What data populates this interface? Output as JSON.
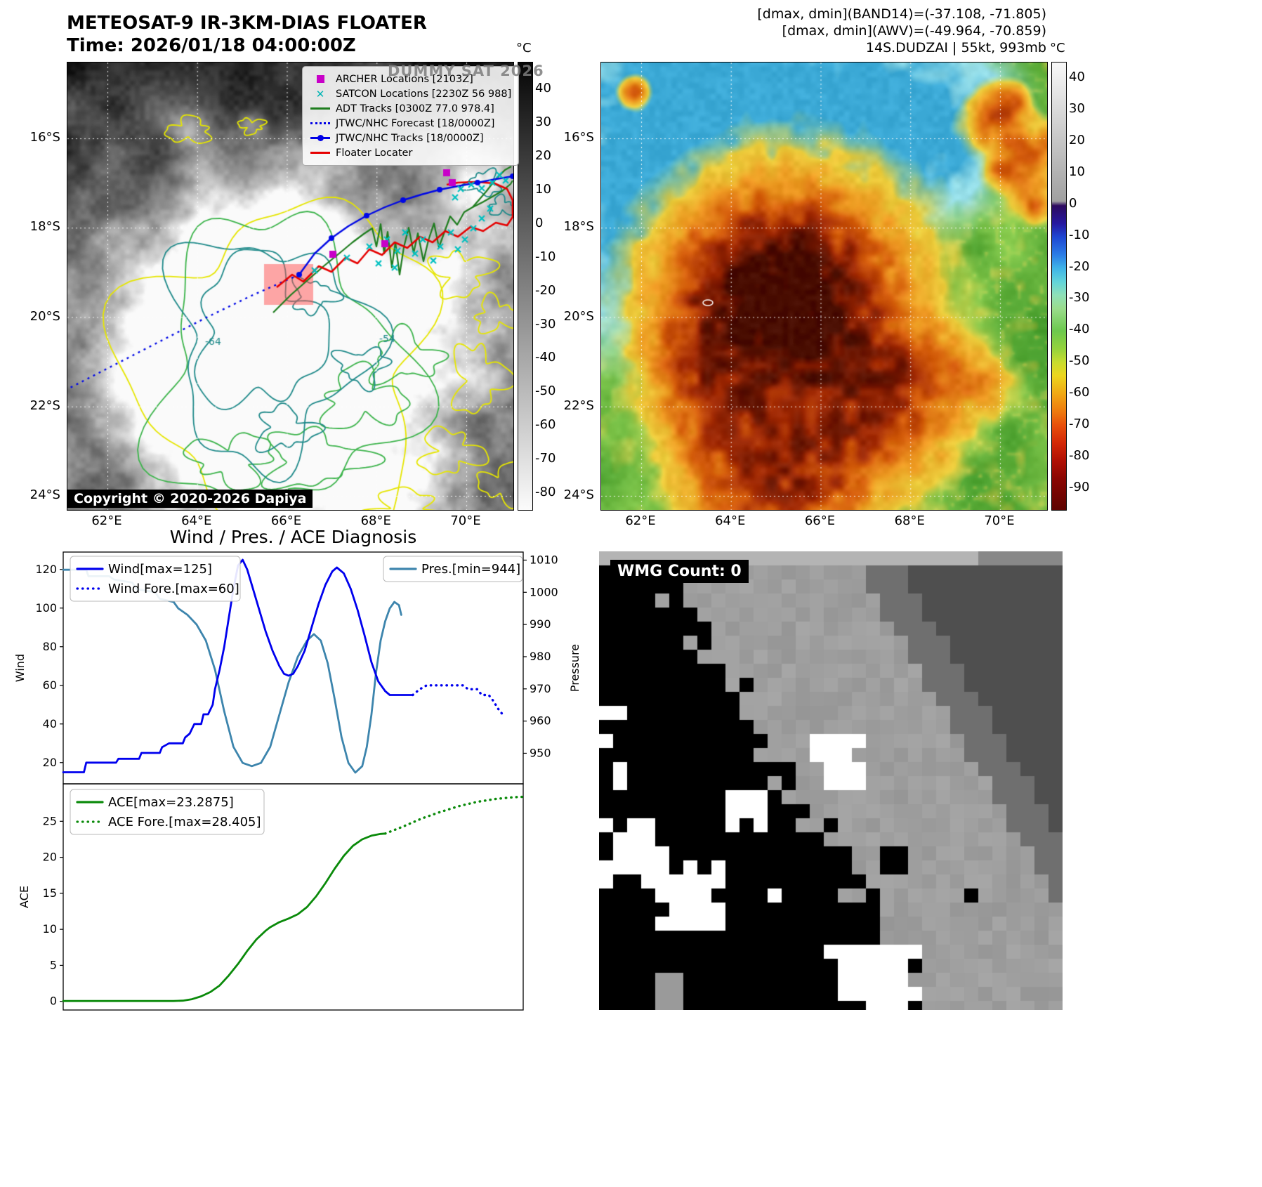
{
  "ir_floater": {
    "title": "METEOSAT-9 IR-3KM-DIAS FLOATER",
    "time_label": "Time: 2026/01/18 04:00:00Z",
    "watermark": "DUMMY SAT 2026",
    "copyright": "Copyright © 2020-2026 Dapiya",
    "colorbar_unit": "°C",
    "colorbar_ticks": [
      40,
      30,
      20,
      10,
      0,
      -10,
      -20,
      -30,
      -40,
      -50,
      -60,
      -70,
      -80
    ],
    "lat_ticks": [
      "16°S",
      "18°S",
      "20°S",
      "22°S",
      "24°S"
    ],
    "lon_ticks": [
      "62°E",
      "64°E",
      "66°E",
      "68°E",
      "70°E"
    ],
    "contour_labels": [
      "-64",
      "-54"
    ],
    "legend": [
      {
        "label": "ARCHER Locations [2103Z]",
        "marker": "square",
        "color": "#c800c8"
      },
      {
        "label": "SATCON Locations [2230Z 56 988]",
        "marker": "x",
        "color": "#00b4b4"
      },
      {
        "label": "ADT Tracks [0300Z 77.0 978.4]",
        "marker": "line",
        "color": "#1e7d1e"
      },
      {
        "label": "JTWC/NHC Forecast [18/0000Z]",
        "marker": "dotted",
        "color": "#0000e6"
      },
      {
        "label": "JTWC/NHC Tracks [18/0000Z]",
        "marker": "line-dot",
        "color": "#0000e6"
      },
      {
        "label": "Floater Locater",
        "marker": "line",
        "color": "#e60000"
      }
    ],
    "tracks": {
      "forecast": [
        [
          330,
          302
        ],
        [
          262,
          332
        ],
        [
          196,
          364
        ],
        [
          130,
          398
        ],
        [
          64,
          432
        ],
        [
          0,
          465
        ]
      ],
      "jtwc": [
        [
          330,
          302
        ],
        [
          352,
          272
        ],
        [
          376,
          250
        ],
        [
          400,
          233
        ],
        [
          426,
          218
        ],
        [
          452,
          206
        ],
        [
          478,
          196
        ],
        [
          504,
          188
        ],
        [
          530,
          181
        ],
        [
          556,
          176
        ],
        [
          584,
          171
        ],
        [
          610,
          166
        ],
        [
          634,
          162
        ]
      ],
      "adt": [
        [
          293,
          356
        ],
        [
          318,
          331
        ],
        [
          343,
          309
        ],
        [
          366,
          289
        ],
        [
          388,
          271
        ],
        [
          406,
          256
        ],
        [
          422,
          244
        ],
        [
          434,
          236
        ],
        [
          440,
          262
        ],
        [
          446,
          230
        ],
        [
          451,
          272
        ],
        [
          456,
          241
        ],
        [
          462,
          292
        ],
        [
          467,
          256
        ],
        [
          473,
          302
        ],
        [
          479,
          263
        ],
        [
          486,
          235
        ],
        [
          493,
          271
        ],
        [
          499,
          243
        ],
        [
          507,
          283
        ],
        [
          514,
          253
        ],
        [
          522,
          229
        ],
        [
          529,
          263
        ],
        [
          537,
          241
        ],
        [
          545,
          219
        ],
        [
          555,
          231
        ],
        [
          565,
          213
        ],
        [
          577,
          206
        ],
        [
          591,
          199
        ],
        [
          605,
          191
        ],
        [
          619,
          183
        ],
        [
          631,
          173
        ],
        [
          634,
          168
        ]
      ],
      "adt_branch": [
        [
          577,
          206
        ],
        [
          596,
          184
        ],
        [
          610,
          166
        ],
        [
          623,
          153
        ],
        [
          632,
          148
        ]
      ],
      "floater": [
        [
          298,
          320
        ],
        [
          320,
          302
        ],
        [
          336,
          312
        ],
        [
          358,
          290
        ],
        [
          376,
          298
        ],
        [
          396,
          278
        ],
        [
          413,
          286
        ],
        [
          430,
          266
        ],
        [
          448,
          274
        ],
        [
          466,
          256
        ],
        [
          484,
          264
        ],
        [
          502,
          248
        ],
        [
          520,
          256
        ],
        [
          538,
          240
        ],
        [
          556,
          248
        ],
        [
          574,
          234
        ],
        [
          592,
          240
        ],
        [
          610,
          228
        ],
        [
          626,
          232
        ],
        [
          634,
          220
        ],
        [
          634,
          196
        ],
        [
          626,
          180
        ],
        [
          608,
          172
        ],
        [
          580,
          170
        ],
        [
          556,
          171
        ],
        [
          540,
          174
        ]
      ],
      "satcon_points": [
        [
          352,
          296
        ],
        [
          398,
          278
        ],
        [
          430,
          262
        ],
        [
          443,
          286
        ],
        [
          455,
          252
        ],
        [
          466,
          292
        ],
        [
          470,
          268
        ],
        [
          481,
          242
        ],
        [
          495,
          272
        ],
        [
          506,
          252
        ],
        [
          521,
          282
        ],
        [
          531,
          262
        ],
        [
          546,
          242
        ],
        [
          556,
          266
        ],
        [
          566,
          252
        ],
        [
          578,
          236
        ],
        [
          590,
          222
        ],
        [
          602,
          208
        ],
        [
          560,
          180
        ],
        [
          575,
          174
        ],
        [
          590,
          179
        ],
        [
          605,
          171
        ],
        [
          552,
          192
        ],
        [
          615,
          160
        ],
        [
          624,
          168
        ]
      ],
      "archer_points": [
        [
          540,
          157
        ],
        [
          548,
          171
        ],
        [
          452,
          258
        ],
        [
          378,
          273
        ]
      ],
      "floater_box": [
        280,
        287,
        70,
        58
      ]
    }
  },
  "ir_awv": {
    "info_lines": [
      "[dmax, dmin](BAND14)=(-37.108, -71.805)",
      "[dmax, dmin](AWV)=(-49.964, -70.859)",
      "14S.DUDZAI | 55kt, 993mb"
    ],
    "colorbar_unit": "°C",
    "colorbar_ticks": [
      40,
      30,
      20,
      10,
      0,
      -10,
      -20,
      -30,
      -40,
      -50,
      -60,
      -70,
      -80,
      -90
    ],
    "lat_ticks": [
      "16°S",
      "18°S",
      "20°S",
      "22°S",
      "24°S"
    ],
    "lon_ticks": [
      "62°E",
      "64°E",
      "66°E",
      "68°E",
      "70°E"
    ]
  },
  "wmg": {
    "count_label": "WMG Count: 0"
  },
  "chart_data": [
    {
      "type": "line",
      "title": "Wind / Pres. / ACE Diagnosis",
      "ylabel_left": "Wind",
      "ylabel_right": "Pressure",
      "y_left_ticks": [
        20,
        40,
        60,
        80,
        100,
        120
      ],
      "y_left_range": [
        9,
        129
      ],
      "y_right_ticks": [
        950,
        960,
        970,
        980,
        990,
        1000,
        1010
      ],
      "y_right_range": [
        940.5,
        1012.5
      ],
      "x_range": [
        0,
        1
      ],
      "series": [
        {
          "name": "Wind[max=125]",
          "color": "#0000ee",
          "style": "solid",
          "axis": "left",
          "points": [
            [
              0,
              15
            ],
            [
              0.045,
              15
            ],
            [
              0.05,
              20
            ],
            [
              0.115,
              20
            ],
            [
              0.12,
              22
            ],
            [
              0.165,
              22
            ],
            [
              0.17,
              25
            ],
            [
              0.21,
              25
            ],
            [
              0.215,
              28
            ],
            [
              0.23,
              30
            ],
            [
              0.26,
              30
            ],
            [
              0.265,
              33
            ],
            [
              0.275,
              35
            ],
            [
              0.285,
              40
            ],
            [
              0.3,
              40
            ],
            [
              0.305,
              45
            ],
            [
              0.315,
              45
            ],
            [
              0.325,
              50
            ],
            [
              0.33,
              58
            ],
            [
              0.34,
              68
            ],
            [
              0.35,
              80
            ],
            [
              0.36,
              95
            ],
            [
              0.37,
              110
            ],
            [
              0.38,
              122
            ],
            [
              0.39,
              125
            ],
            [
              0.4,
              120
            ],
            [
              0.41,
              112
            ],
            [
              0.425,
              100
            ],
            [
              0.44,
              88
            ],
            [
              0.455,
              78
            ],
            [
              0.47,
              70
            ],
            [
              0.48,
              66
            ],
            [
              0.49,
              65
            ],
            [
              0.5,
              66
            ],
            [
              0.51,
              70
            ],
            [
              0.525,
              78
            ],
            [
              0.54,
              90
            ],
            [
              0.555,
              102
            ],
            [
              0.57,
              112
            ],
            [
              0.585,
              119
            ],
            [
              0.595,
              121
            ],
            [
              0.61,
              118
            ],
            [
              0.625,
              110
            ],
            [
              0.64,
              99
            ],
            [
              0.655,
              86
            ],
            [
              0.67,
              72
            ],
            [
              0.685,
              62
            ],
            [
              0.7,
              57
            ],
            [
              0.71,
              55
            ],
            [
              0.76,
              55
            ]
          ]
        },
        {
          "name": "Wind Fore.[max=60]",
          "color": "#0000ee",
          "style": "dotted",
          "axis": "left",
          "points": [
            [
              0.76,
              55
            ],
            [
              0.775,
              58
            ],
            [
              0.79,
              60
            ],
            [
              0.87,
              60
            ],
            [
              0.88,
              58
            ],
            [
              0.9,
              58
            ],
            [
              0.91,
              55
            ],
            [
              0.925,
              55
            ],
            [
              0.935,
              52
            ],
            [
              0.945,
              48
            ],
            [
              0.955,
              45
            ]
          ]
        },
        {
          "name": "Pres.[min=944]",
          "color": "#3d85ad",
          "style": "solid",
          "axis": "right",
          "points": [
            [
              0,
              1007
            ],
            [
              0.05,
              1007
            ],
            [
              0.055,
              1005
            ],
            [
              0.1,
              1005
            ],
            [
              0.11,
              1004
            ],
            [
              0.15,
              1003
            ],
            [
              0.16,
              1001
            ],
            [
              0.2,
              1000
            ],
            [
              0.21,
              998
            ],
            [
              0.24,
              997
            ],
            [
              0.25,
              995
            ],
            [
              0.27,
              993
            ],
            [
              0.29,
              990
            ],
            [
              0.31,
              985
            ],
            [
              0.33,
              976
            ],
            [
              0.35,
              963
            ],
            [
              0.37,
              952
            ],
            [
              0.39,
              947
            ],
            [
              0.41,
              946
            ],
            [
              0.43,
              947
            ],
            [
              0.45,
              952
            ],
            [
              0.47,
              962
            ],
            [
              0.49,
              972
            ],
            [
              0.51,
              980
            ],
            [
              0.53,
              985
            ],
            [
              0.545,
              987
            ],
            [
              0.56,
              985
            ],
            [
              0.575,
              978
            ],
            [
              0.59,
              967
            ],
            [
              0.605,
              955
            ],
            [
              0.62,
              947
            ],
            [
              0.635,
              944
            ],
            [
              0.65,
              946
            ],
            [
              0.66,
              952
            ],
            [
              0.67,
              962
            ],
            [
              0.68,
              975
            ],
            [
              0.69,
              985
            ],
            [
              0.7,
              991
            ],
            [
              0.71,
              995
            ],
            [
              0.72,
              997
            ],
            [
              0.73,
              996
            ],
            [
              0.735,
              993
            ]
          ]
        }
      ]
    },
    {
      "type": "line",
      "ylabel_left": "ACE",
      "y_left_ticks": [
        0,
        5,
        10,
        15,
        20,
        25
      ],
      "y_left_range": [
        -1.2,
        30.2
      ],
      "x_range": [
        0,
        1
      ],
      "series": [
        {
          "name": "ACE[max=23.2875]",
          "color": "#0a8a0a",
          "style": "solid",
          "axis": "left",
          "points": [
            [
              0,
              0.05
            ],
            [
              0.24,
              0.05
            ],
            [
              0.26,
              0.1
            ],
            [
              0.28,
              0.3
            ],
            [
              0.3,
              0.7
            ],
            [
              0.32,
              1.3
            ],
            [
              0.34,
              2.2
            ],
            [
              0.36,
              3.6
            ],
            [
              0.38,
              5.2
            ],
            [
              0.4,
              7
            ],
            [
              0.42,
              8.6
            ],
            [
              0.44,
              9.8
            ],
            [
              0.45,
              10.3
            ],
            [
              0.47,
              11
            ],
            [
              0.49,
              11.5
            ],
            [
              0.51,
              12.1
            ],
            [
              0.53,
              13.1
            ],
            [
              0.55,
              14.6
            ],
            [
              0.57,
              16.4
            ],
            [
              0.59,
              18.4
            ],
            [
              0.61,
              20.2
            ],
            [
              0.63,
              21.6
            ],
            [
              0.65,
              22.5
            ],
            [
              0.67,
              23
            ],
            [
              0.69,
              23.25
            ],
            [
              0.7,
              23.3
            ]
          ]
        },
        {
          "name": "ACE Fore.[max=28.405]",
          "color": "#0a8a0a",
          "style": "dotted",
          "axis": "left",
          "points": [
            [
              0.7,
              23.3
            ],
            [
              0.74,
              24.3
            ],
            [
              0.78,
              25.4
            ],
            [
              0.82,
              26.3
            ],
            [
              0.86,
              27.1
            ],
            [
              0.9,
              27.7
            ],
            [
              0.94,
              28.1
            ],
            [
              0.98,
              28.35
            ],
            [
              1,
              28.4
            ]
          ]
        }
      ]
    }
  ]
}
